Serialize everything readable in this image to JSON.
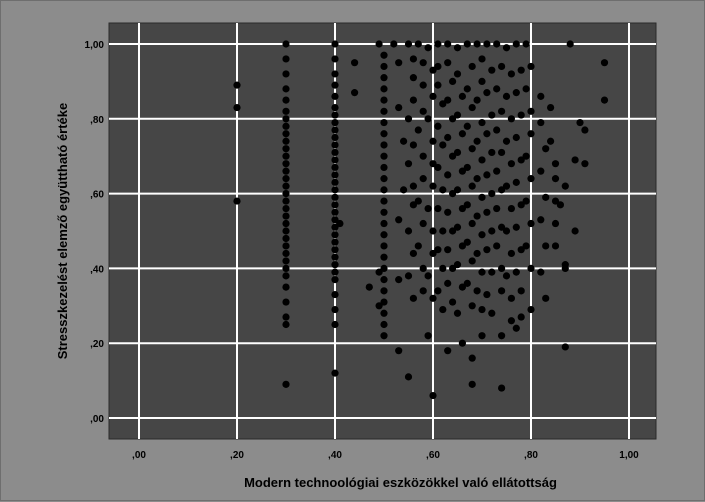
{
  "chart_data": {
    "type": "scatter",
    "title": "",
    "xlabel": "Modern technoológiai eszközökkel való ellátottság",
    "ylabel": "Stresszkezelést elemző együttható értéke",
    "xlim": [
      0,
      1
    ],
    "ylim": [
      0,
      1
    ],
    "grid": true,
    "xticks": [
      ",00",
      ",20",
      ",40",
      ",60",
      ",80",
      "1,00"
    ],
    "yticks": [
      ",00",
      ",20",
      ",40",
      ",60",
      ",80",
      "1,00"
    ],
    "colors": {
      "outer_background": "#8c8c8c",
      "plot_background": "#464646",
      "grid": "#ffffff",
      "marker": "#000000"
    },
    "points": [
      [
        0.2,
        0.89
      ],
      [
        0.2,
        0.83
      ],
      [
        0.2,
        0.58
      ],
      [
        0.3,
        1.0
      ],
      [
        0.3,
        0.96
      ],
      [
        0.3,
        0.92
      ],
      [
        0.3,
        0.88
      ],
      [
        0.3,
        0.85
      ],
      [
        0.3,
        0.82
      ],
      [
        0.3,
        0.8
      ],
      [
        0.3,
        0.78
      ],
      [
        0.3,
        0.76
      ],
      [
        0.3,
        0.74
      ],
      [
        0.3,
        0.72
      ],
      [
        0.3,
        0.7
      ],
      [
        0.3,
        0.68
      ],
      [
        0.3,
        0.66
      ],
      [
        0.3,
        0.64
      ],
      [
        0.3,
        0.62
      ],
      [
        0.3,
        0.6
      ],
      [
        0.3,
        0.58
      ],
      [
        0.3,
        0.56
      ],
      [
        0.3,
        0.54
      ],
      [
        0.3,
        0.52
      ],
      [
        0.3,
        0.5
      ],
      [
        0.3,
        0.48
      ],
      [
        0.3,
        0.46
      ],
      [
        0.3,
        0.44
      ],
      [
        0.3,
        0.42
      ],
      [
        0.3,
        0.4
      ],
      [
        0.3,
        0.38
      ],
      [
        0.3,
        0.35
      ],
      [
        0.3,
        0.31
      ],
      [
        0.3,
        0.27
      ],
      [
        0.3,
        0.25
      ],
      [
        0.3,
        0.09
      ],
      [
        0.4,
        1.0
      ],
      [
        0.4,
        0.96
      ],
      [
        0.4,
        0.92
      ],
      [
        0.4,
        0.89
      ],
      [
        0.4,
        0.86
      ],
      [
        0.4,
        0.83
      ],
      [
        0.4,
        0.81
      ],
      [
        0.4,
        0.79
      ],
      [
        0.4,
        0.77
      ],
      [
        0.4,
        0.75
      ],
      [
        0.4,
        0.73
      ],
      [
        0.4,
        0.71
      ],
      [
        0.4,
        0.69
      ],
      [
        0.4,
        0.67
      ],
      [
        0.4,
        0.65
      ],
      [
        0.4,
        0.63
      ],
      [
        0.4,
        0.61
      ],
      [
        0.4,
        0.59
      ],
      [
        0.4,
        0.57
      ],
      [
        0.4,
        0.55
      ],
      [
        0.4,
        0.53
      ],
      [
        0.4,
        0.51
      ],
      [
        0.4,
        0.49
      ],
      [
        0.4,
        0.47
      ],
      [
        0.4,
        0.45
      ],
      [
        0.4,
        0.43
      ],
      [
        0.4,
        0.41
      ],
      [
        0.4,
        0.39
      ],
      [
        0.4,
        0.37
      ],
      [
        0.4,
        0.33
      ],
      [
        0.4,
        0.29
      ],
      [
        0.4,
        0.25
      ],
      [
        0.4,
        0.12
      ],
      [
        0.41,
        0.52
      ],
      [
        0.44,
        0.95
      ],
      [
        0.44,
        0.87
      ],
      [
        0.47,
        0.35
      ],
      [
        0.49,
        1.0
      ],
      [
        0.5,
        0.97
      ],
      [
        0.5,
        0.94
      ],
      [
        0.5,
        0.91
      ],
      [
        0.5,
        0.88
      ],
      [
        0.5,
        0.85
      ],
      [
        0.5,
        0.82
      ],
      [
        0.5,
        0.79
      ],
      [
        0.5,
        0.76
      ],
      [
        0.5,
        0.73
      ],
      [
        0.5,
        0.7
      ],
      [
        0.5,
        0.67
      ],
      [
        0.5,
        0.64
      ],
      [
        0.5,
        0.61
      ],
      [
        0.5,
        0.58
      ],
      [
        0.5,
        0.55
      ],
      [
        0.5,
        0.52
      ],
      [
        0.5,
        0.49
      ],
      [
        0.5,
        0.46
      ],
      [
        0.5,
        0.43
      ],
      [
        0.5,
        0.4
      ],
      [
        0.5,
        0.37
      ],
      [
        0.5,
        0.34
      ],
      [
        0.5,
        0.31
      ],
      [
        0.5,
        0.28
      ],
      [
        0.5,
        0.25
      ],
      [
        0.5,
        0.22
      ],
      [
        0.49,
        0.39
      ],
      [
        0.49,
        0.3
      ],
      [
        0.52,
        1.0
      ],
      [
        0.53,
        0.95
      ],
      [
        0.53,
        0.83
      ],
      [
        0.54,
        0.74
      ],
      [
        0.54,
        0.61
      ],
      [
        0.53,
        0.53
      ],
      [
        0.53,
        0.37
      ],
      [
        0.53,
        0.18
      ],
      [
        0.55,
        1.0
      ],
      [
        0.56,
        0.96
      ],
      [
        0.56,
        0.91
      ],
      [
        0.56,
        0.85
      ],
      [
        0.55,
        0.8
      ],
      [
        0.56,
        0.73
      ],
      [
        0.55,
        0.68
      ],
      [
        0.56,
        0.62
      ],
      [
        0.56,
        0.57
      ],
      [
        0.55,
        0.5
      ],
      [
        0.56,
        0.44
      ],
      [
        0.55,
        0.38
      ],
      [
        0.56,
        0.32
      ],
      [
        0.55,
        0.11
      ],
      [
        0.57,
        1.0
      ],
      [
        0.58,
        0.95
      ],
      [
        0.58,
        0.89
      ],
      [
        0.58,
        0.82
      ],
      [
        0.57,
        0.77
      ],
      [
        0.58,
        0.7
      ],
      [
        0.58,
        0.64
      ],
      [
        0.57,
        0.58
      ],
      [
        0.58,
        0.52
      ],
      [
        0.57,
        0.46
      ],
      [
        0.58,
        0.4
      ],
      [
        0.58,
        0.34
      ],
      [
        0.59,
        0.99
      ],
      [
        0.6,
        0.93
      ],
      [
        0.6,
        0.86
      ],
      [
        0.59,
        0.8
      ],
      [
        0.6,
        0.74
      ],
      [
        0.6,
        0.68
      ],
      [
        0.6,
        0.62
      ],
      [
        0.59,
        0.56
      ],
      [
        0.6,
        0.5
      ],
      [
        0.6,
        0.44
      ],
      [
        0.59,
        0.38
      ],
      [
        0.6,
        0.32
      ],
      [
        0.59,
        0.22
      ],
      [
        0.6,
        0.06
      ],
      [
        0.61,
        1.0
      ],
      [
        0.61,
        0.94
      ],
      [
        0.61,
        0.89
      ],
      [
        0.62,
        0.84
      ],
      [
        0.61,
        0.78
      ],
      [
        0.62,
        0.73
      ],
      [
        0.61,
        0.67
      ],
      [
        0.62,
        0.61
      ],
      [
        0.61,
        0.56
      ],
      [
        0.62,
        0.5
      ],
      [
        0.61,
        0.45
      ],
      [
        0.62,
        0.4
      ],
      [
        0.61,
        0.34
      ],
      [
        0.62,
        0.29
      ],
      [
        0.63,
        1.0
      ],
      [
        0.63,
        0.95
      ],
      [
        0.64,
        0.9
      ],
      [
        0.63,
        0.85
      ],
      [
        0.64,
        0.8
      ],
      [
        0.63,
        0.75
      ],
      [
        0.64,
        0.7
      ],
      [
        0.63,
        0.65
      ],
      [
        0.64,
        0.6
      ],
      [
        0.63,
        0.55
      ],
      [
        0.64,
        0.5
      ],
      [
        0.63,
        0.45
      ],
      [
        0.64,
        0.4
      ],
      [
        0.63,
        0.36
      ],
      [
        0.64,
        0.31
      ],
      [
        0.63,
        0.18
      ],
      [
        0.65,
        0.99
      ],
      [
        0.65,
        0.92
      ],
      [
        0.66,
        0.86
      ],
      [
        0.65,
        0.81
      ],
      [
        0.66,
        0.76
      ],
      [
        0.65,
        0.71
      ],
      [
        0.66,
        0.66
      ],
      [
        0.65,
        0.61
      ],
      [
        0.66,
        0.56
      ],
      [
        0.65,
        0.51
      ],
      [
        0.66,
        0.46
      ],
      [
        0.65,
        0.41
      ],
      [
        0.66,
        0.35
      ],
      [
        0.65,
        0.28
      ],
      [
        0.66,
        0.2
      ],
      [
        0.67,
        1.0
      ],
      [
        0.68,
        0.94
      ],
      [
        0.67,
        0.88
      ],
      [
        0.68,
        0.83
      ],
      [
        0.67,
        0.78
      ],
      [
        0.68,
        0.72
      ],
      [
        0.67,
        0.67
      ],
      [
        0.68,
        0.62
      ],
      [
        0.67,
        0.57
      ],
      [
        0.68,
        0.52
      ],
      [
        0.67,
        0.47
      ],
      [
        0.68,
        0.42
      ],
      [
        0.67,
        0.36
      ],
      [
        0.68,
        0.3
      ],
      [
        0.68,
        0.16
      ],
      [
        0.68,
        0.09
      ],
      [
        0.69,
        1.0
      ],
      [
        0.7,
        0.96
      ],
      [
        0.7,
        0.9
      ],
      [
        0.69,
        0.85
      ],
      [
        0.7,
        0.79
      ],
      [
        0.69,
        0.74
      ],
      [
        0.7,
        0.69
      ],
      [
        0.69,
        0.64
      ],
      [
        0.7,
        0.59
      ],
      [
        0.69,
        0.54
      ],
      [
        0.7,
        0.49
      ],
      [
        0.69,
        0.44
      ],
      [
        0.7,
        0.39
      ],
      [
        0.69,
        0.34
      ],
      [
        0.7,
        0.29
      ],
      [
        0.7,
        0.22
      ],
      [
        0.71,
        1.0
      ],
      [
        0.72,
        0.93
      ],
      [
        0.71,
        0.87
      ],
      [
        0.72,
        0.81
      ],
      [
        0.71,
        0.76
      ],
      [
        0.72,
        0.71
      ],
      [
        0.71,
        0.65
      ],
      [
        0.72,
        0.6
      ],
      [
        0.71,
        0.55
      ],
      [
        0.72,
        0.5
      ],
      [
        0.71,
        0.45
      ],
      [
        0.72,
        0.39
      ],
      [
        0.71,
        0.33
      ],
      [
        0.72,
        0.28
      ],
      [
        0.73,
        1.0
      ],
      [
        0.74,
        0.94
      ],
      [
        0.73,
        0.88
      ],
      [
        0.74,
        0.82
      ],
      [
        0.73,
        0.77
      ],
      [
        0.74,
        0.71
      ],
      [
        0.73,
        0.66
      ],
      [
        0.74,
        0.61
      ],
      [
        0.73,
        0.56
      ],
      [
        0.74,
        0.51
      ],
      [
        0.73,
        0.46
      ],
      [
        0.74,
        0.4
      ],
      [
        0.74,
        0.34
      ],
      [
        0.74,
        0.22
      ],
      [
        0.74,
        0.08
      ],
      [
        0.75,
        0.99
      ],
      [
        0.76,
        0.92
      ],
      [
        0.75,
        0.86
      ],
      [
        0.76,
        0.8
      ],
      [
        0.75,
        0.74
      ],
      [
        0.76,
        0.68
      ],
      [
        0.75,
        0.62
      ],
      [
        0.76,
        0.56
      ],
      [
        0.75,
        0.5
      ],
      [
        0.76,
        0.44
      ],
      [
        0.75,
        0.38
      ],
      [
        0.76,
        0.32
      ],
      [
        0.76,
        0.26
      ],
      [
        0.77,
        1.0
      ],
      [
        0.78,
        0.93
      ],
      [
        0.77,
        0.87
      ],
      [
        0.78,
        0.81
      ],
      [
        0.77,
        0.75
      ],
      [
        0.78,
        0.69
      ],
      [
        0.77,
        0.63
      ],
      [
        0.78,
        0.57
      ],
      [
        0.77,
        0.51
      ],
      [
        0.78,
        0.45
      ],
      [
        0.77,
        0.39
      ],
      [
        0.78,
        0.34
      ],
      [
        0.78,
        0.27
      ],
      [
        0.77,
        0.24
      ],
      [
        0.79,
        1.0
      ],
      [
        0.8,
        0.94
      ],
      [
        0.79,
        0.88
      ],
      [
        0.8,
        0.82
      ],
      [
        0.8,
        0.76
      ],
      [
        0.79,
        0.7
      ],
      [
        0.8,
        0.64
      ],
      [
        0.79,
        0.58
      ],
      [
        0.8,
        0.52
      ],
      [
        0.79,
        0.46
      ],
      [
        0.8,
        0.4
      ],
      [
        0.8,
        0.29
      ],
      [
        0.82,
        0.86
      ],
      [
        0.82,
        0.79
      ],
      [
        0.83,
        0.72
      ],
      [
        0.82,
        0.66
      ],
      [
        0.83,
        0.59
      ],
      [
        0.82,
        0.53
      ],
      [
        0.83,
        0.46
      ],
      [
        0.82,
        0.39
      ],
      [
        0.83,
        0.32
      ],
      [
        0.84,
        0.83
      ],
      [
        0.84,
        0.74
      ],
      [
        0.85,
        0.68
      ],
      [
        0.85,
        0.64
      ],
      [
        0.85,
        0.58
      ],
      [
        0.85,
        0.52
      ],
      [
        0.85,
        0.46
      ],
      [
        0.86,
        0.57
      ],
      [
        0.87,
        0.62
      ],
      [
        0.87,
        0.41
      ],
      [
        0.87,
        0.4
      ],
      [
        0.87,
        0.19
      ],
      [
        0.88,
        1.0
      ],
      [
        0.89,
        0.69
      ],
      [
        0.89,
        0.5
      ],
      [
        0.9,
        0.79
      ],
      [
        0.91,
        0.77
      ],
      [
        0.91,
        0.68
      ],
      [
        0.95,
        0.95
      ],
      [
        0.95,
        0.85
      ]
    ]
  }
}
